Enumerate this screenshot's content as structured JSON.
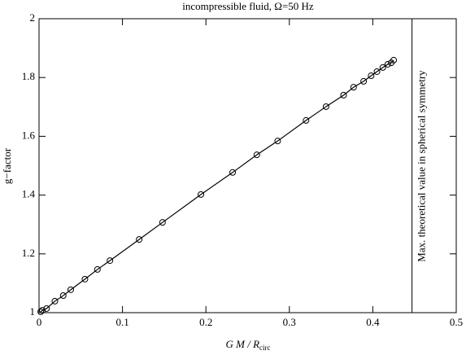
{
  "chart_data": {
    "type": "scatter",
    "title": "incompressible fluid, Ω=50 Hz",
    "xlabel": "G M / R",
    "xlabel_sub": "circ",
    "ylabel": "g−factor",
    "xlim": [
      0,
      0.5
    ],
    "ylim": [
      1,
      2
    ],
    "xticks": [
      0,
      0.1,
      0.2,
      0.3,
      0.4,
      0.5
    ],
    "yticks": [
      1,
      1.2,
      1.4,
      1.6,
      1.8,
      2
    ],
    "series": [
      {
        "color": "#000000",
        "x": [
          0.002,
          0.004,
          0.009,
          0.019,
          0.029,
          0.038,
          0.055,
          0.07,
          0.085,
          0.12,
          0.148,
          0.194,
          0.232,
          0.261,
          0.286,
          0.32,
          0.344,
          0.365,
          0.377,
          0.389,
          0.398,
          0.405,
          0.412,
          0.418,
          0.422,
          0.425
        ],
        "values": [
          1.003,
          1.008,
          1.014,
          1.039,
          1.058,
          1.078,
          1.114,
          1.147,
          1.177,
          1.249,
          1.307,
          1.402,
          1.477,
          1.537,
          1.584,
          1.654,
          1.701,
          1.74,
          1.767,
          1.787,
          1.806,
          1.82,
          1.834,
          1.845,
          1.85,
          1.859
        ]
      }
    ],
    "vline": {
      "x": 0.447,
      "label": "Max. theoretical value in spherical symmetry"
    }
  }
}
